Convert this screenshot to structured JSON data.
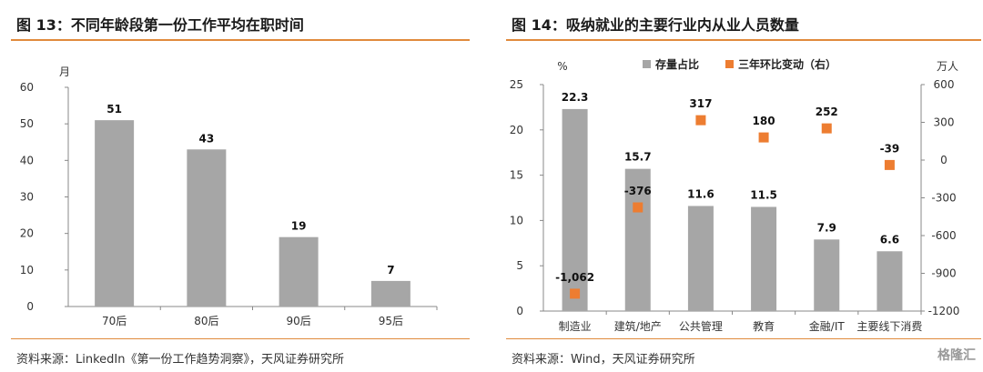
{
  "left": {
    "title": "图 13：不同年龄段第一份工作平均在职时间",
    "source": "资料来源：LinkedIn《第一份工作趋势洞察》，天风证券研究所"
  },
  "right": {
    "title": "图 14：吸纳就业的主要行业内从业人员数量",
    "source": "资料来源：Wind，天风证券研究所"
  },
  "watermark": "格隆汇",
  "colors": {
    "bar": "#a6a6a6",
    "marker": "#ed7d31",
    "rule": "#e08a3c",
    "axis": "#888888"
  },
  "chart_data": [
    {
      "type": "bar",
      "categories": [
        "70后",
        "80后",
        "90后",
        "95后"
      ],
      "values": [
        51,
        43,
        19,
        7
      ],
      "data_labels": [
        "51",
        "43",
        "19",
        "7"
      ],
      "ylabel": "月",
      "ylim": [
        0,
        60
      ],
      "yticks": [
        "0",
        "10",
        "20",
        "30",
        "40",
        "50",
        "60"
      ],
      "grid": false
    },
    {
      "type": "bar",
      "categories": [
        "制造业",
        "建筑/地产",
        "公共管理",
        "教育",
        "金融/IT",
        "主要线下消费"
      ],
      "series": [
        {
          "name": "存量占比",
          "type": "bar",
          "axis": "left",
          "values": [
            22.3,
            15.7,
            11.6,
            11.5,
            7.9,
            6.6
          ],
          "labels": [
            "22.3",
            "15.7",
            "11.6",
            "11.5",
            "7.9",
            "6.6"
          ]
        },
        {
          "name": "三年环比变动（右）",
          "type": "scatter",
          "axis": "right",
          "values": [
            -1062,
            -376,
            317,
            180,
            252,
            -39
          ],
          "labels": [
            "-1,062",
            "-376",
            "317",
            "180",
            "252",
            "-39"
          ]
        }
      ],
      "ylabel_left": "%",
      "ylabel_right": "万人",
      "ylim_left": [
        0,
        25
      ],
      "ylim_right": [
        -1200,
        600
      ],
      "yticks_left": [
        "0",
        "5",
        "10",
        "15",
        "20",
        "25"
      ],
      "yticks_right": [
        "-1200",
        "-900",
        "-600",
        "-300",
        "0",
        "300",
        "600"
      ],
      "legend": "top-center",
      "grid": false
    }
  ]
}
